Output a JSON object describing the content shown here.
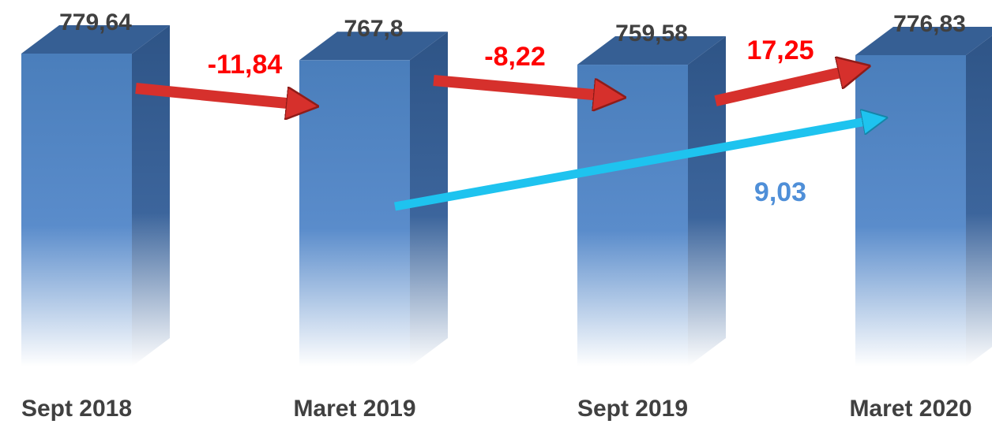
{
  "chart_data": {
    "type": "bar3d",
    "categories": [
      "Sept 2018",
      "Maret 2019",
      "Sept 2019",
      "Maret 2020"
    ],
    "values": [
      779.64,
      767.8,
      759.58,
      776.83
    ],
    "value_labels": [
      "779,64",
      "767,8",
      "759,58",
      "776,83"
    ],
    "color": "#4a7ebb",
    "annotations": [
      {
        "text": "-11,84",
        "color": "#ff0000"
      },
      {
        "text": "-8,22",
        "color": "#ff0000"
      },
      {
        "text": "17,25",
        "color": "#ff0000"
      },
      {
        "text": "9,03",
        "color": "#4f8fd8"
      }
    ]
  }
}
